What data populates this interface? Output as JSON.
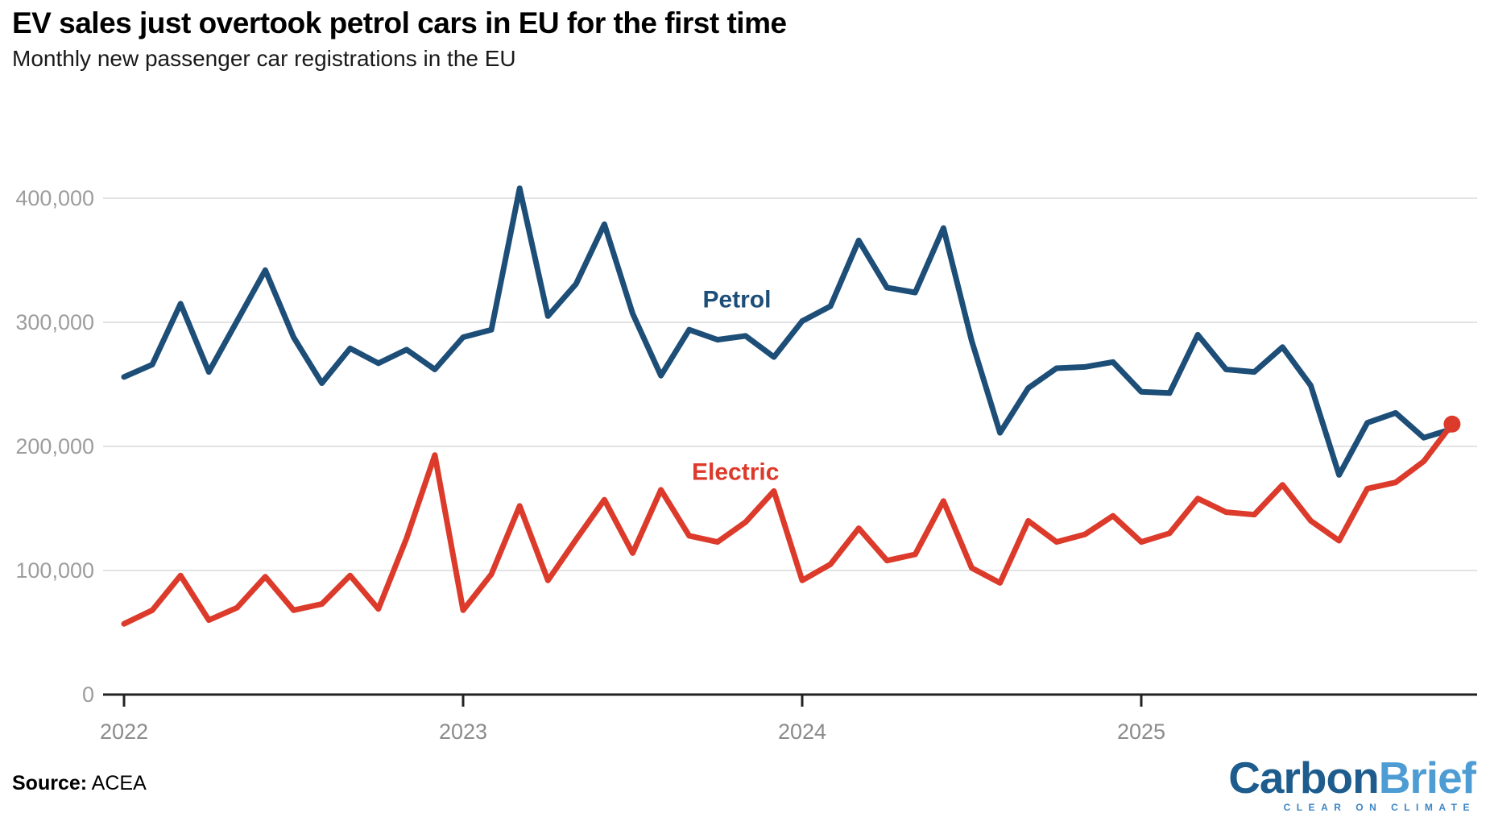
{
  "header": {
    "title": "EV sales just overtook petrol cars in EU for the first time",
    "subtitle": "Monthly new passenger car registrations in the EU"
  },
  "footer": {
    "source_label": "Source:",
    "source_value": "ACEA",
    "logo": {
      "part1": "Carbon",
      "part2": "Brief",
      "tagline": "CLEAR ON CLIMATE",
      "part1_color": "#1d5c8c",
      "part2_color": "#4e9cd4",
      "tagline_color": "#3c86c6"
    }
  },
  "chart_data": {
    "type": "line",
    "title": "EV sales just overtook petrol cars in EU for the first time",
    "subtitle": "Monthly new passenger car registrations in the EU",
    "xlabel": "",
    "ylabel": "Monthly new passenger car registrations",
    "grid": "horizontal",
    "legend_position": "inline-annotations",
    "ylim": [
      0,
      430000
    ],
    "yticks": [
      {
        "value": 0,
        "label": "0"
      },
      {
        "value": 100000,
        "label": "100,000"
      },
      {
        "value": 200000,
        "label": "200,000"
      },
      {
        "value": 300000,
        "label": "300,000"
      },
      {
        "value": 400000,
        "label": "400,000"
      }
    ],
    "xticks": [
      {
        "label": "2022",
        "month_index": 0
      },
      {
        "label": "2023",
        "month_index": 12
      },
      {
        "label": "2024",
        "month_index": 24
      },
      {
        "label": "2025",
        "month_index": 36
      }
    ],
    "months": [
      "2022-01",
      "2022-02",
      "2022-03",
      "2022-04",
      "2022-05",
      "2022-06",
      "2022-07",
      "2022-08",
      "2022-09",
      "2022-10",
      "2022-11",
      "2022-12",
      "2023-01",
      "2023-02",
      "2023-03",
      "2023-04",
      "2023-05",
      "2023-06",
      "2023-07",
      "2023-08",
      "2023-09",
      "2023-10",
      "2023-11",
      "2023-12",
      "2024-01",
      "2024-02",
      "2024-03",
      "2024-04",
      "2024-05",
      "2024-06",
      "2024-07",
      "2024-08",
      "2024-09",
      "2024-10",
      "2024-11",
      "2024-12",
      "2025-01",
      "2025-02",
      "2025-03",
      "2025-04",
      "2025-05",
      "2025-06",
      "2025-07",
      "2025-08",
      "2025-09",
      "2025-10",
      "2025-11",
      "2025-12"
    ],
    "series": [
      {
        "name": "Petrol",
        "color": "#1d4e78",
        "values": [
          256000,
          266000,
          315000,
          260000,
          301000,
          342000,
          288000,
          251000,
          279000,
          267000,
          278000,
          262000,
          288000,
          294000,
          408000,
          305000,
          331000,
          379000,
          307000,
          257000,
          294000,
          286000,
          289000,
          272000,
          301000,
          313000,
          366000,
          328000,
          324000,
          376000,
          285000,
          211000,
          247000,
          263000,
          264000,
          268000,
          244000,
          243000,
          290000,
          262000,
          260000,
          280000,
          249000,
          177000,
          219000,
          227000,
          207000,
          214000
        ]
      },
      {
        "name": "Electric",
        "color": "#dc3a2a",
        "values": [
          57000,
          68000,
          96000,
          60000,
          70000,
          95000,
          68000,
          73000,
          96000,
          69000,
          126000,
          193000,
          68000,
          97000,
          152000,
          92000,
          125000,
          157000,
          114000,
          165000,
          128000,
          123000,
          139000,
          164000,
          92000,
          105000,
          134000,
          108000,
          113000,
          156000,
          102000,
          90000,
          140000,
          123000,
          129000,
          144000,
          123000,
          130000,
          158000,
          147000,
          145000,
          169000,
          140000,
          124000,
          166000,
          171000,
          188000,
          218000
        ]
      }
    ],
    "annotations": [
      {
        "text": "Petrol",
        "series": "Petrol",
        "month_index": 21.69,
        "value": 312000
      },
      {
        "text": "Electric",
        "series": "Electric",
        "month_index": 21.64,
        "value": 173000
      }
    ],
    "end_marker": {
      "series": "Electric",
      "month_index": 47,
      "radius": 10.5
    }
  }
}
